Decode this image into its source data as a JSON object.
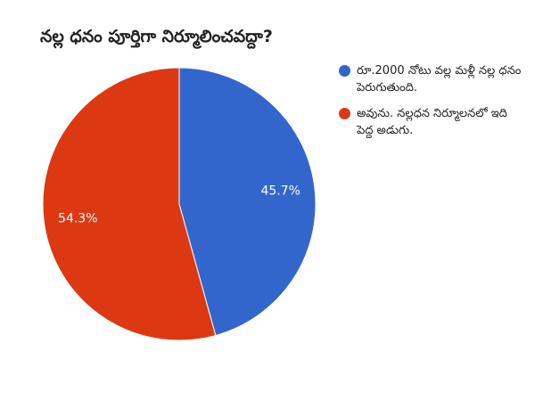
{
  "chart_data": {
    "type": "pie",
    "title": "నల్ల ధనం పూర్తిగా నిర్మూలించవద్దా?",
    "slices": [
      {
        "label": "రూ.2000 నోటు వల్ల మళ్లీ నల్ల ధనం పెరుగుతుంది.",
        "value": 45.7,
        "display": "45.7%",
        "color": "#3366cc"
      },
      {
        "label": "అవును. నల్లధన నిర్మూలనలో ఇది పెద్ద అడుగు.",
        "value": 54.3,
        "display": "54.3%",
        "color": "#dc3912"
      }
    ],
    "legend_position": "right"
  }
}
